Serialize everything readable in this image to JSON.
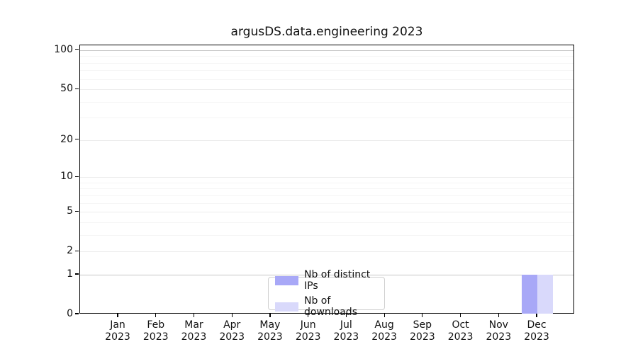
{
  "chart_data": {
    "type": "bar",
    "title": "argusDS.data.engineering 2023",
    "categories": [
      {
        "month": "Jan",
        "year": "2023"
      },
      {
        "month": "Feb",
        "year": "2023"
      },
      {
        "month": "Mar",
        "year": "2023"
      },
      {
        "month": "Apr",
        "year": "2023"
      },
      {
        "month": "May",
        "year": "2023"
      },
      {
        "month": "Jun",
        "year": "2023"
      },
      {
        "month": "Jul",
        "year": "2023"
      },
      {
        "month": "Aug",
        "year": "2023"
      },
      {
        "month": "Sep",
        "year": "2023"
      },
      {
        "month": "Oct",
        "year": "2023"
      },
      {
        "month": "Nov",
        "year": "2023"
      },
      {
        "month": "Dec",
        "year": "2023"
      }
    ],
    "series": [
      {
        "name": "Nb of distinct IPs",
        "color": "#a8a8f7",
        "values": [
          0,
          0,
          0,
          0,
          0,
          0,
          0,
          0,
          0,
          0,
          0,
          1
        ]
      },
      {
        "name": "Nb of downloads",
        "color": "#d9d9fb",
        "values": [
          0,
          0,
          0,
          0,
          0,
          0,
          0,
          0,
          0,
          0,
          0,
          1
        ]
      }
    ],
    "y_axis": {
      "scale": "log1p",
      "major_ticks": [
        0,
        1,
        2,
        5,
        10,
        20,
        50,
        100
      ],
      "emphasized_gridlines": [
        1,
        100
      ],
      "minor_ticks": [
        3,
        4,
        6,
        7,
        8,
        9,
        30,
        40,
        60,
        70,
        80,
        90
      ],
      "range": [
        0,
        109
      ]
    },
    "x_axis": {
      "label": "",
      "tick_format": "month-over-year"
    },
    "legend": {
      "position": "lower center"
    },
    "grid": "horizontal",
    "colors": {
      "grid_major": "#ececec",
      "grid_minor": "#f5f5f5",
      "grid_emphasis": "#c4c4c4",
      "axis": "#000000",
      "text": "#111111"
    }
  }
}
